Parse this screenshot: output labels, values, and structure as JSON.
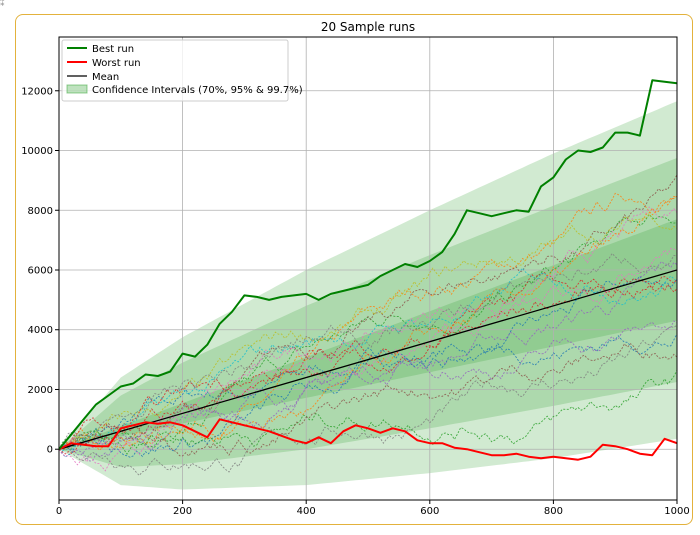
{
  "chart_data": {
    "type": "line",
    "title": "20 Sample runs",
    "xlabel": "",
    "ylabel": "",
    "xlim": [
      0,
      1000
    ],
    "ylim": [
      -1700,
      13800
    ],
    "x_ticks": [
      0,
      200,
      400,
      600,
      800,
      1000
    ],
    "y_ticks": [
      0,
      2000,
      4000,
      6000,
      8000,
      10000,
      12000
    ],
    "grid": true,
    "legend_position": "top-left",
    "legend": [
      "Best run",
      "Worst run",
      "Mean",
      "Confidence Intervals (70%, 95% & 99.7%)"
    ],
    "colors": {
      "best": "#008000",
      "worst": "#ff0000",
      "mean": "#000000",
      "band": "#2ca02c"
    },
    "mean": {
      "x": [
        0,
        1000
      ],
      "y": [
        0,
        6000
      ]
    },
    "confidence_half_widths": [
      {
        "level": "70%",
        "x": [
          0,
          1000
        ],
        "y": [
          0,
          1700
        ]
      },
      {
        "level": "95%",
        "x": [
          0,
          100,
          200,
          400,
          600,
          800,
          1000
        ],
        "y": [
          0,
          1200,
          1700,
          2400,
          2900,
          3350,
          3750
        ]
      },
      {
        "level": "99.7%",
        "x": [
          0,
          100,
          200,
          400,
          600,
          800,
          1000
        ],
        "y": [
          0,
          1800,
          2550,
          3600,
          4400,
          5100,
          5650
        ]
      }
    ],
    "series": [
      {
        "name": "Best run",
        "x": [
          0,
          20,
          40,
          60,
          80,
          100,
          120,
          140,
          160,
          180,
          200,
          220,
          240,
          260,
          280,
          300,
          320,
          340,
          360,
          380,
          400,
          420,
          440,
          460,
          480,
          500,
          520,
          540,
          560,
          580,
          600,
          620,
          640,
          660,
          680,
          700,
          720,
          740,
          760,
          780,
          800,
          820,
          840,
          860,
          880,
          900,
          920,
          940,
          960,
          980,
          1000
        ],
        "y": [
          0,
          500,
          1000,
          1500,
          1800,
          2100,
          2200,
          2500,
          2450,
          2600,
          3200,
          3100,
          3500,
          4200,
          4600,
          5150,
          5100,
          5000,
          5100,
          5150,
          5200,
          5000,
          5200,
          5300,
          5400,
          5500,
          5800,
          6000,
          6200,
          6100,
          6300,
          6600,
          7200,
          8000,
          7900,
          7800,
          7900,
          8000,
          7950,
          8800,
          9100,
          9700,
          10000,
          9950,
          10100,
          10600,
          10600,
          10500,
          12350,
          12300,
          12250
        ]
      },
      {
        "name": "Worst run",
        "x": [
          0,
          20,
          40,
          60,
          80,
          100,
          120,
          140,
          160,
          180,
          200,
          220,
          240,
          260,
          280,
          300,
          320,
          340,
          360,
          380,
          400,
          420,
          440,
          460,
          480,
          500,
          520,
          540,
          560,
          580,
          600,
          620,
          640,
          660,
          680,
          700,
          720,
          740,
          760,
          780,
          800,
          820,
          840,
          860,
          880,
          900,
          920,
          940,
          960,
          980,
          1000
        ],
        "y": [
          0,
          200,
          150,
          100,
          100,
          700,
          800,
          900,
          850,
          900,
          800,
          600,
          400,
          1000,
          900,
          800,
          700,
          600,
          450,
          300,
          200,
          400,
          200,
          600,
          800,
          700,
          550,
          700,
          600,
          300,
          200,
          200,
          50,
          0,
          -100,
          -200,
          -200,
          -150,
          -250,
          -300,
          -250,
          -300,
          -350,
          -250,
          150,
          100,
          0,
          -150,
          -200,
          350,
          200
        ]
      }
    ],
    "sample_run_count": 18
  }
}
